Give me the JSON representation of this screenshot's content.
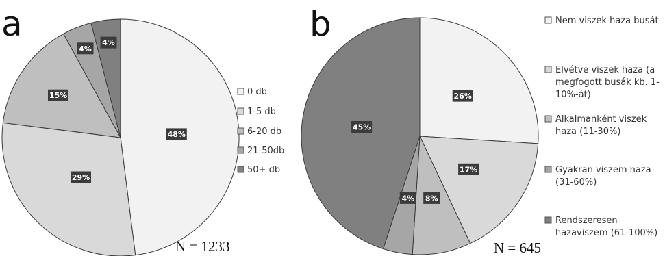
{
  "chart_data": [
    {
      "type": "pie",
      "panel": "a",
      "n_label": "N = 1233",
      "slices": [
        {
          "label": "0 db",
          "value": 48,
          "display": "48%",
          "color": "#f2f2f2"
        },
        {
          "label": "1-5 db",
          "value": 29,
          "display": "29%",
          "color": "#d9d9d9"
        },
        {
          "label": "6-20 db",
          "value": 15,
          "display": "15%",
          "color": "#bfbfbf"
        },
        {
          "label": "21-50db",
          "value": 4,
          "display": "4%",
          "color": "#a6a6a6"
        },
        {
          "label": "50+ db",
          "value": 4,
          "display": "4%",
          "color": "#808080"
        }
      ],
      "legend_position": "right"
    },
    {
      "type": "pie",
      "panel": "b",
      "n_label": "N = 645",
      "slices": [
        {
          "label": "Nem viszek haza busát",
          "value": 26,
          "display": "26%",
          "color": "#f2f2f2"
        },
        {
          "label": "Elvétve viszek haza (a megfogott busák kb. 1-10%-át)",
          "value": 17,
          "display": "17%",
          "color": "#d9d9d9"
        },
        {
          "label": "Alkalmanként viszek haza (11-30%)",
          "value": 8,
          "display": "8%",
          "color": "#bfbfbf"
        },
        {
          "label": "Gyakran viszem haza (31-60%)",
          "value": 4,
          "display": "4%",
          "color": "#a6a6a6"
        },
        {
          "label": "Rendszeresen hazaviszem (61-100%)",
          "value": 45,
          "display": "45%",
          "color": "#808080"
        }
      ],
      "legend_position": "right"
    }
  ]
}
